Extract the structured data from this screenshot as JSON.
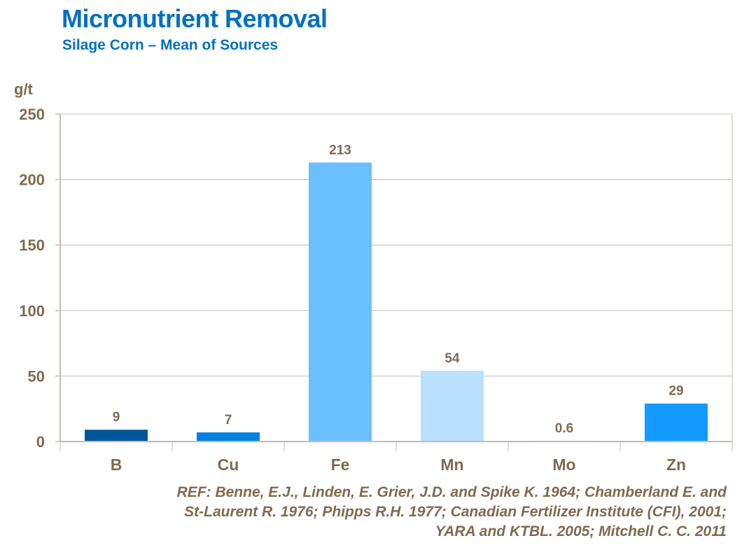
{
  "header": {
    "title": "Micronutrient Removal",
    "subtitle": "Silage Corn – Mean of Sources"
  },
  "chart_data": {
    "type": "bar",
    "title": "Micronutrient Removal",
    "subtitle": "Silage Corn – Mean of Sources",
    "ylabel": "g/t",
    "xlabel": "",
    "categories": [
      "B",
      "Cu",
      "Fe",
      "Mn",
      "Mo",
      "Zn"
    ],
    "values": [
      9,
      7,
      213,
      54,
      0.6,
      29
    ],
    "value_labels": [
      "9",
      "7",
      "213",
      "54",
      "0.6",
      "29"
    ],
    "colors": [
      "#005597",
      "#0080e0",
      "#6abfff",
      "#b9e0ff",
      "#b9e0ff",
      "#1499ff"
    ],
    "ylim": [
      0,
      250
    ],
    "yticks": [
      0,
      50,
      100,
      150,
      200,
      250
    ],
    "grid": true
  },
  "reference": {
    "lines": [
      "REF: Benne, E.J., Linden, E. Grier, J.D. and Spike K. 1964; Chamberland  E. and",
      "St-Laurent  R. 1976;  Phipps R.H. 1977; Canadian  Fertilizer Institute (CFI), 2001;",
      "YARA  and KTBL. 2005; Mitchell C. C. 2011"
    ]
  },
  "colors": {
    "title": "#0070c0",
    "text": "#7f6a4f",
    "grid": "#c4bcb2"
  }
}
